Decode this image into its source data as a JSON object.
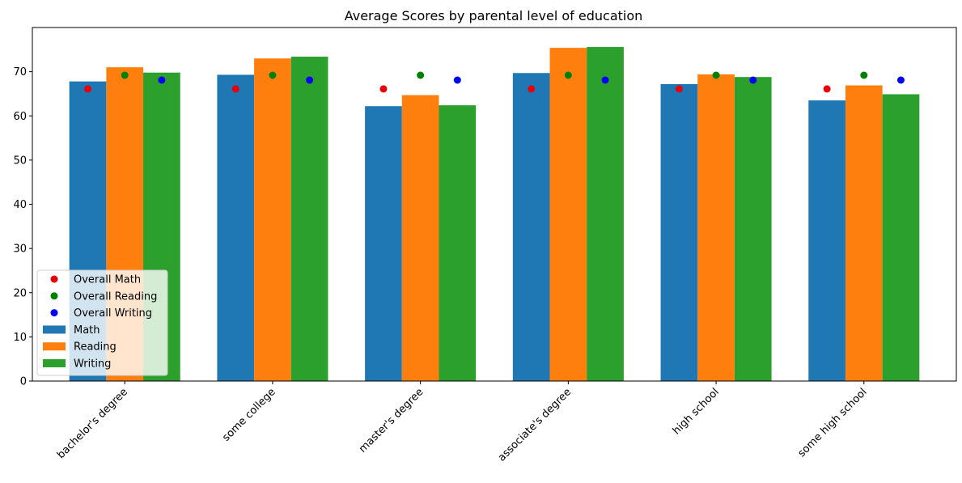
{
  "chart_data": {
    "type": "bar",
    "title": "Average Scores by parental level of education",
    "xlabel": "",
    "ylabel": "",
    "ylim": [
      0,
      80
    ],
    "yticks": [
      0,
      10,
      20,
      30,
      40,
      50,
      60,
      70
    ],
    "grid": false,
    "legend_placement": "lower-left",
    "categories": [
      "bachelor's degree",
      "some college",
      "master's degree",
      "associate's degree",
      "high school",
      "some high school"
    ],
    "series": [
      {
        "name": "Math",
        "color": "#1f77b4",
        "values": [
          67.8,
          69.3,
          62.2,
          69.7,
          67.2,
          63.5
        ]
      },
      {
        "name": "Reading",
        "color": "#ff7f0e",
        "values": [
          71.0,
          73.0,
          64.7,
          75.4,
          69.4,
          66.9
        ]
      },
      {
        "name": "Writing",
        "color": "#2ca02c",
        "values": [
          69.8,
          73.4,
          62.4,
          75.6,
          68.8,
          64.9
        ]
      }
    ],
    "overall": [
      {
        "name": "Overall Math",
        "color": "#e8000b",
        "value": 66.1,
        "series_index": 0
      },
      {
        "name": "Overall Reading",
        "color": "#008000",
        "value": 69.2,
        "series_index": 1
      },
      {
        "name": "Overall Writing",
        "color": "#0000ff",
        "value": 68.1,
        "series_index": 2
      }
    ],
    "legend_order": [
      "Overall Math",
      "Overall Reading",
      "Overall Writing",
      "Math",
      "Reading",
      "Writing"
    ]
  }
}
